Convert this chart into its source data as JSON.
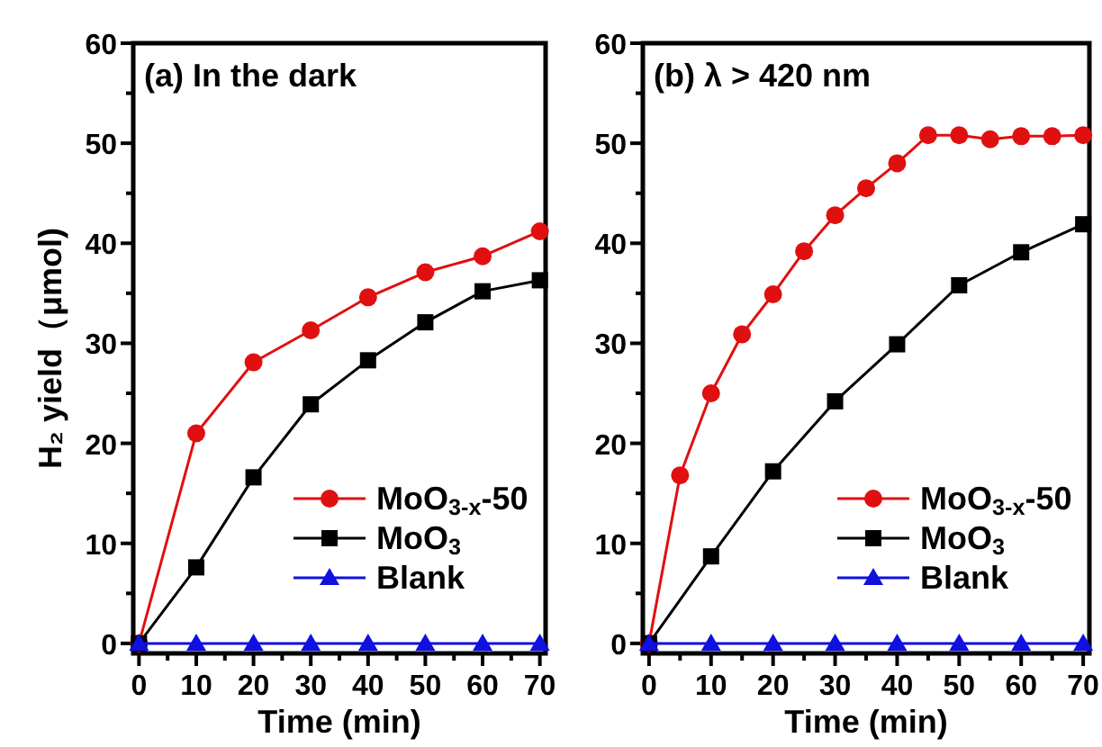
{
  "chart_data": [
    {
      "type": "line",
      "title": "(a) In the dark",
      "xlabel": "Time (min)",
      "ylabel": "H₂ yield（μmol)",
      "xlim": [
        -1,
        71
      ],
      "ylim": [
        -1,
        60
      ],
      "xticks": [
        0,
        {
          "value": 5,
          "label": null
        },
        10,
        {
          "value": 15,
          "label": null
        },
        20,
        {
          "value": 25,
          "label": null
        },
        30,
        {
          "value": 35,
          "label": null
        },
        40,
        {
          "value": 45,
          "label": null
        },
        50,
        {
          "value": 55,
          "label": null
        },
        60,
        {
          "value": 65,
          "label": null
        },
        70
      ],
      "yticks": [
        0,
        {
          "value": 5,
          "label": null
        },
        10,
        {
          "value": 15,
          "label": null
        },
        20,
        {
          "value": 25,
          "label": null
        },
        30,
        {
          "value": 35,
          "label": null
        },
        40,
        {
          "value": 45,
          "label": null
        },
        50,
        {
          "value": 55,
          "label": null
        },
        60
      ],
      "legend": "bottom right",
      "grid": false,
      "series": [
        {
          "name": "MoO$_{3-x}$-50",
          "color": "#e01010",
          "marker": "circle",
          "x": [
            0,
            10,
            20,
            30,
            40,
            50,
            60,
            70
          ],
          "values": [
            0,
            21,
            28.1,
            31.3,
            34.6,
            37.1,
            38.7,
            41.2
          ]
        },
        {
          "name": "MoO$_{3}$",
          "color": "#000000",
          "marker": "square",
          "x": [
            0,
            10,
            20,
            30,
            40,
            50,
            60,
            70
          ],
          "values": [
            0,
            7.6,
            16.6,
            23.9,
            28.3,
            32.1,
            35.2,
            36.3
          ]
        },
        {
          "name": "Blank",
          "color": "#1010e0",
          "marker": "triangle",
          "x": [
            0,
            10,
            20,
            30,
            40,
            50,
            60,
            70
          ],
          "values": [
            0,
            0,
            0,
            0,
            0,
            0,
            0,
            0
          ]
        }
      ]
    },
    {
      "type": "line",
      "title": "(b) λ > 420 nm",
      "xlabel": "Time (min)",
      "xlim": [
        -1,
        71
      ],
      "ylim": [
        -1,
        60
      ],
      "xticks": [
        0,
        {
          "value": 5,
          "label": null
        },
        10,
        {
          "value": 15,
          "label": null
        },
        20,
        {
          "value": 25,
          "label": null
        },
        30,
        {
          "value": 35,
          "label": null
        },
        40,
        {
          "value": 45,
          "label": null
        },
        50,
        {
          "value": 55,
          "label": null
        },
        60,
        {
          "value": 65,
          "label": null
        },
        70
      ],
      "yticks": [
        0,
        {
          "value": 5,
          "label": null
        },
        10,
        {
          "value": 15,
          "label": null
        },
        20,
        {
          "value": 25,
          "label": null
        },
        30,
        {
          "value": 35,
          "label": null
        },
        40,
        {
          "value": 45,
          "label": null
        },
        50,
        {
          "value": 55,
          "label": null
        },
        60
      ],
      "legend": "bottom right",
      "grid": false,
      "series": [
        {
          "name": "MoO$_{3-x}$-50",
          "color": "#e01010",
          "marker": "circle",
          "x": [
            0,
            5,
            10,
            15,
            20,
            25,
            30,
            35,
            40,
            45,
            50,
            55,
            60,
            65,
            70
          ],
          "values": [
            0,
            16.8,
            25,
            30.9,
            34.9,
            39.2,
            42.8,
            45.5,
            48,
            50.8,
            50.8,
            50.4,
            50.7,
            50.7,
            50.8
          ]
        },
        {
          "name": "MoO$_{3}$",
          "color": "#000000",
          "marker": "square",
          "x": [
            0,
            10,
            20,
            30,
            40,
            50,
            60,
            70
          ],
          "values": [
            0,
            8.7,
            17.2,
            24.2,
            29.9,
            35.8,
            39.1,
            41.9
          ]
        },
        {
          "name": "Blank",
          "color": "#1010e0",
          "marker": "triangle",
          "x": [
            0,
            10,
            20,
            30,
            40,
            50,
            60,
            70
          ],
          "values": [
            0,
            0,
            0,
            0,
            0,
            0,
            0,
            0
          ]
        }
      ]
    }
  ]
}
